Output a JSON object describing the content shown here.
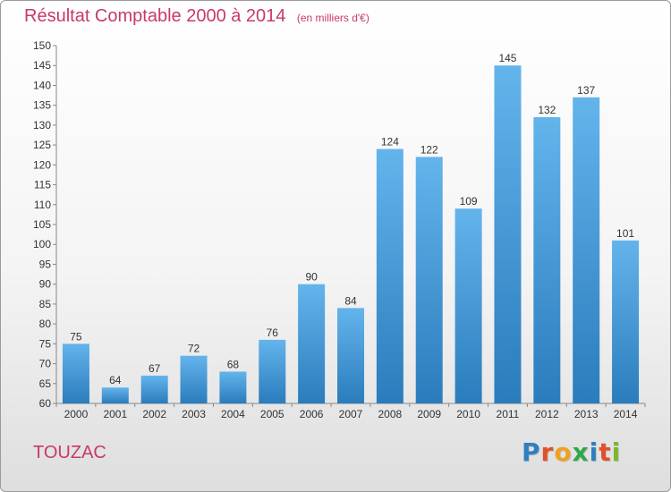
{
  "header": {
    "title": "Résultat Comptable 2000 à 2014",
    "subtitle": "(en milliers d'€)"
  },
  "footer": {
    "commune": "TOUZAC",
    "logo_text": "Proxiti",
    "logo_colors": [
      "#2f7fc0",
      "#e0502a",
      "#f0a020",
      "#2fa84a",
      "#2f7fc0",
      "#e0502a",
      "#7ab82e"
    ]
  },
  "colors": {
    "accent": "#c8386c",
    "bar_top": "#64b4ec",
    "bar_bottom": "#2a7cbc"
  },
  "chart_data": {
    "type": "bar",
    "categories": [
      "2000",
      "2001",
      "2002",
      "2003",
      "2004",
      "2005",
      "2006",
      "2007",
      "2008",
      "2009",
      "2010",
      "2011",
      "2012",
      "2013",
      "2014"
    ],
    "values": [
      75,
      64,
      67,
      72,
      68,
      76,
      90,
      84,
      124,
      122,
      109,
      145,
      132,
      137,
      101
    ],
    "title": "Résultat Comptable 2000 à 2014",
    "subtitle": "(en milliers d'€)",
    "xlabel": "",
    "ylabel": "",
    "ylim": [
      60,
      150
    ],
    "yticks": [
      60,
      65,
      70,
      75,
      80,
      85,
      90,
      95,
      100,
      105,
      110,
      115,
      120,
      125,
      130,
      135,
      140,
      145,
      150
    ],
    "grid": false,
    "legend": "none"
  }
}
